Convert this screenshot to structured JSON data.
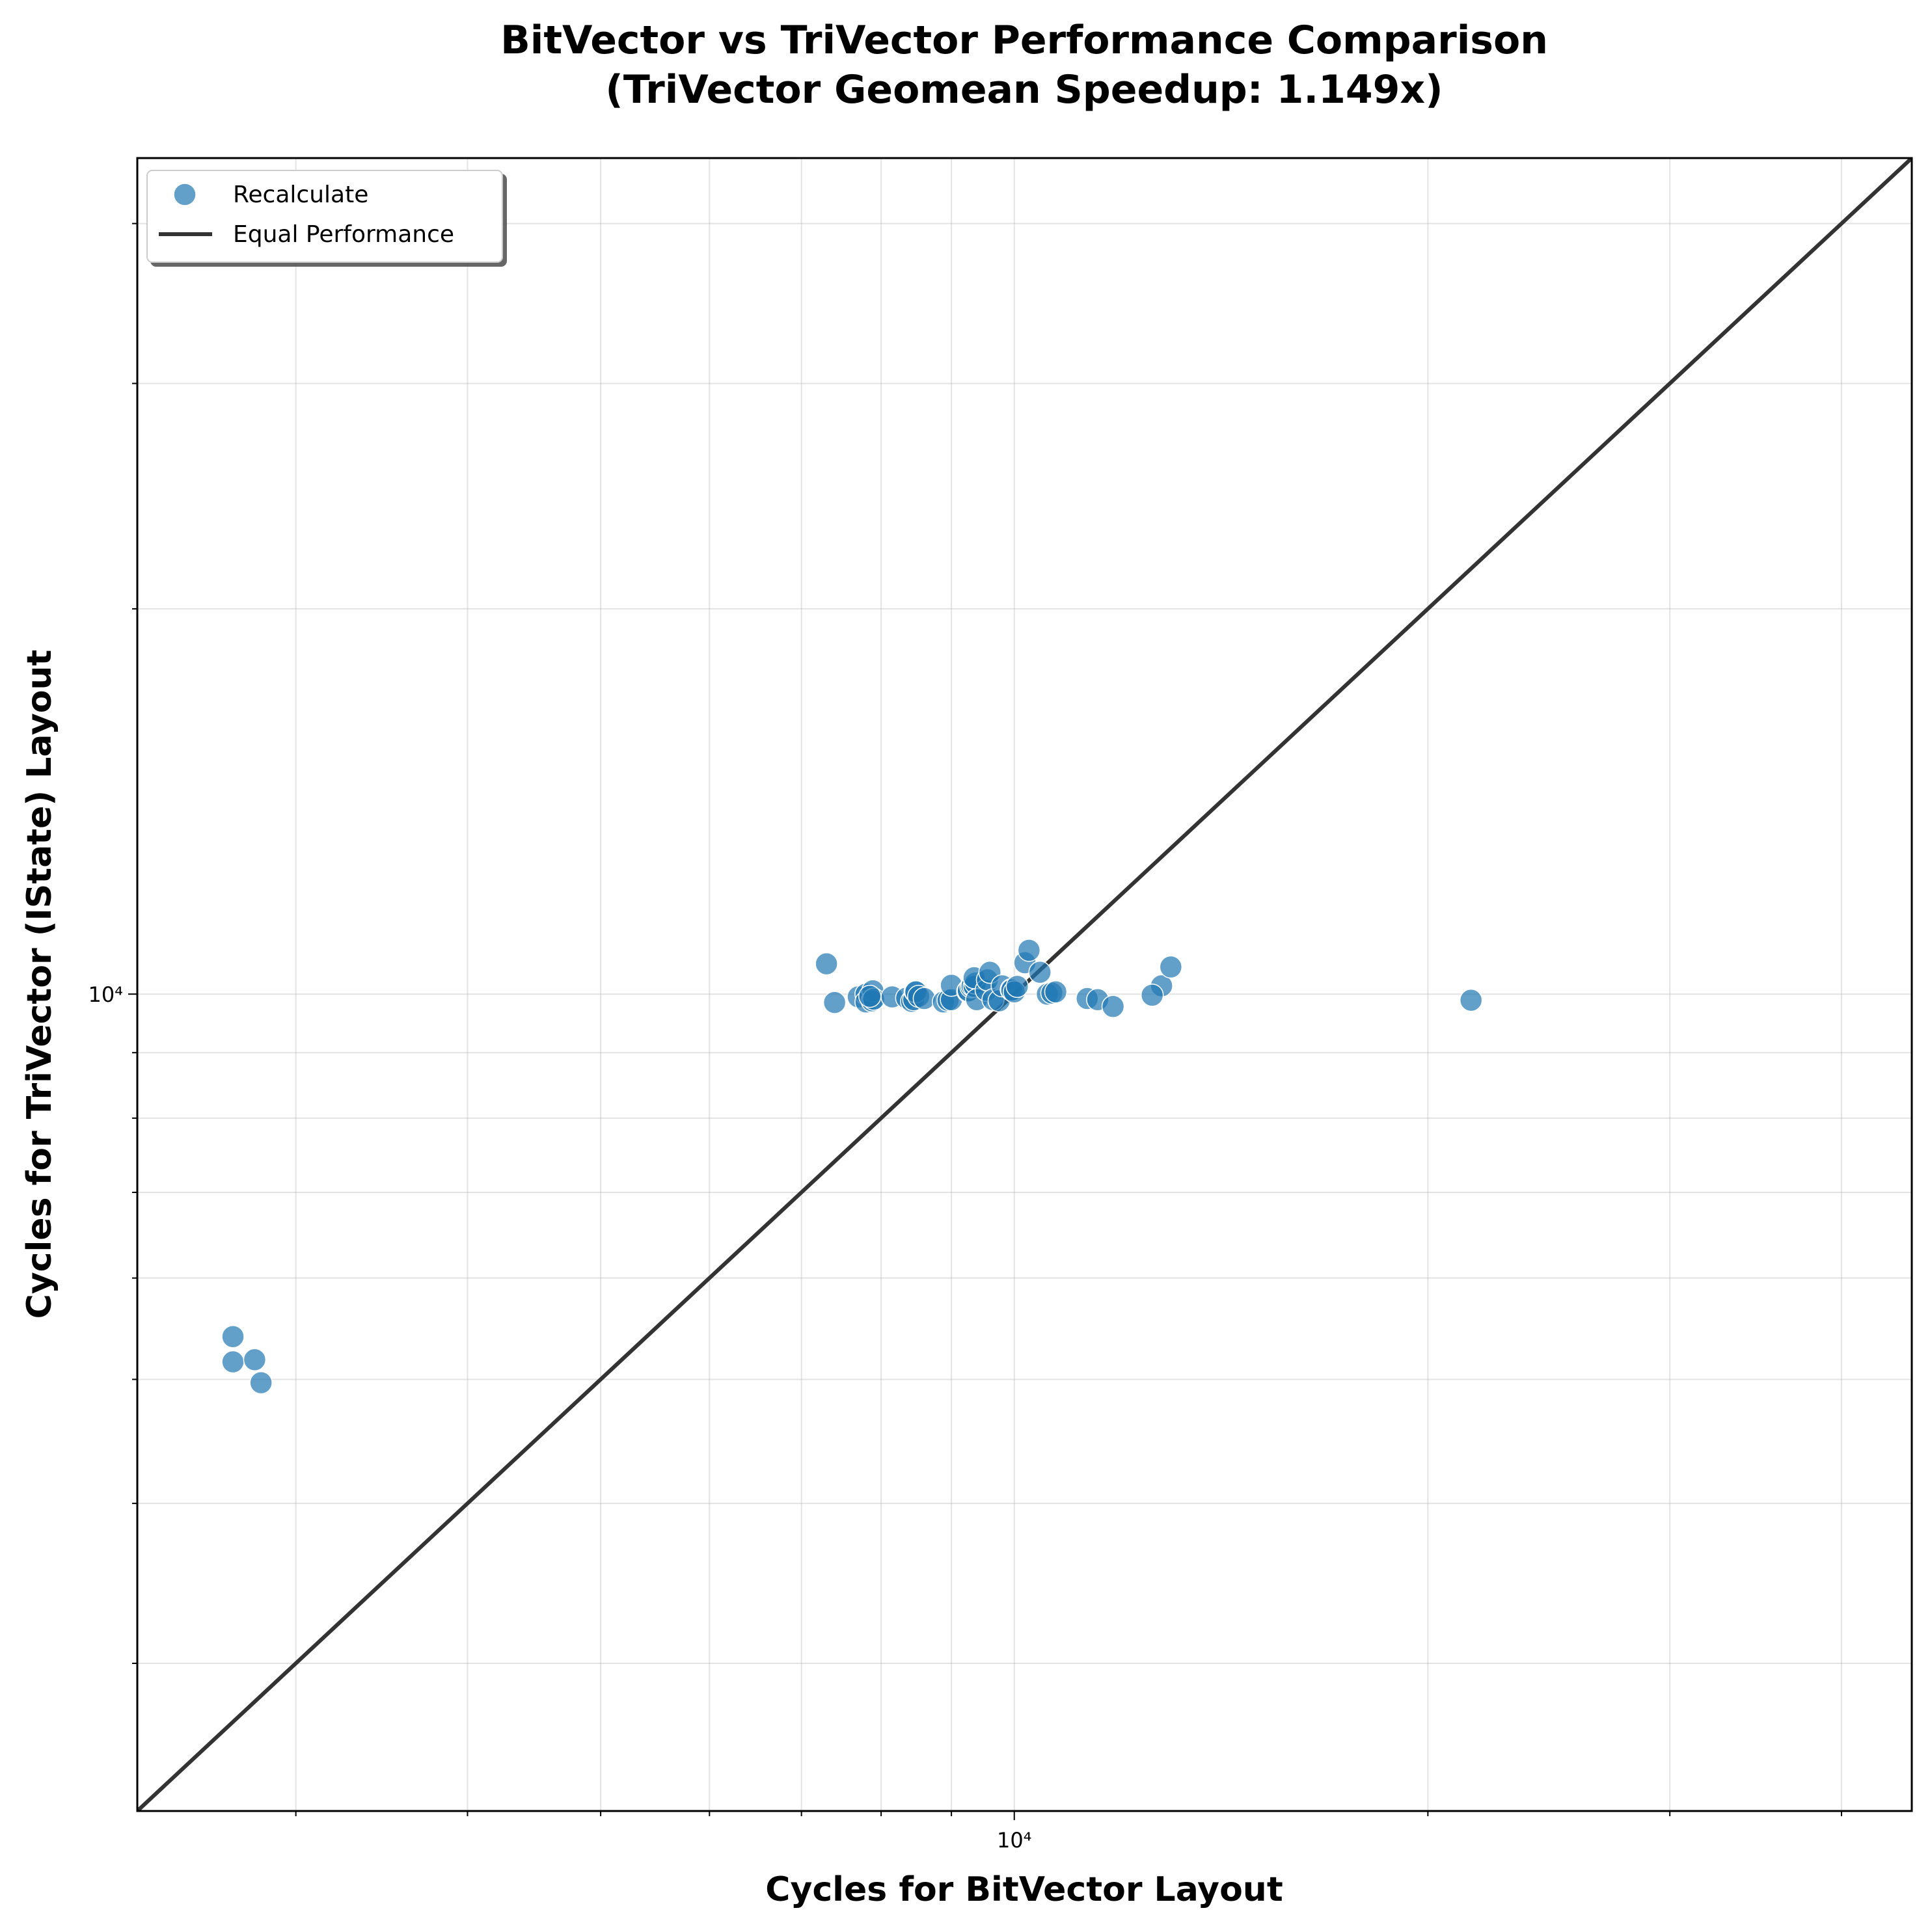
{
  "chart_data": {
    "type": "scatter",
    "title": "BitVector vs TriVector Performance Comparison",
    "subtitle": "(TriVector Geomean Speedup: 1.149x)",
    "xlabel": "Cycles for BitVector Layout",
    "ylabel": "Cycles for TriVector (IState) Layout",
    "x_scale": "log",
    "y_scale": "log",
    "xlim": [
      2300,
      45000
    ],
    "ylim": [
      2300,
      45000
    ],
    "major_tick_value": 10000,
    "major_tick_label": "10⁴",
    "minor_ticks": [
      3000,
      4000,
      5000,
      6000,
      7000,
      8000,
      9000,
      20000,
      30000,
      40000
    ],
    "grid": true,
    "legend_position": "top-left",
    "legend": [
      {
        "label": "Recalculate",
        "kind": "marker"
      },
      {
        "label": "Equal Performance",
        "kind": "line"
      }
    ],
    "series": [
      {
        "name": "Recalculate",
        "color": "#1f77b4",
        "points": [
          [
            2700,
            5400
          ],
          [
            2700,
            5160
          ],
          [
            2800,
            5180
          ],
          [
            2830,
            4970
          ],
          [
            7300,
            10560
          ],
          [
            7400,
            9850
          ],
          [
            7700,
            9950
          ],
          [
            7800,
            10000
          ],
          [
            7800,
            9860
          ],
          [
            7890,
            10060
          ],
          [
            7880,
            9880
          ],
          [
            7900,
            9910
          ],
          [
            7850,
            9960
          ],
          [
            8150,
            9950
          ],
          [
            8350,
            9930
          ],
          [
            8420,
            9870
          ],
          [
            8450,
            9900
          ],
          [
            8470,
            10050
          ],
          [
            8480,
            10040
          ],
          [
            8520,
            9960
          ],
          [
            8600,
            9920
          ],
          [
            8880,
            9860
          ],
          [
            8950,
            9890
          ],
          [
            9000,
            9900
          ],
          [
            9000,
            10160
          ],
          [
            9250,
            10050
          ],
          [
            9260,
            10060
          ],
          [
            9300,
            10130
          ],
          [
            9320,
            10150
          ],
          [
            9350,
            10140
          ],
          [
            9370,
            10200
          ],
          [
            9350,
            10300
          ],
          [
            9390,
            9900
          ],
          [
            9540,
            10070
          ],
          [
            9560,
            10260
          ],
          [
            9600,
            10400
          ],
          [
            9650,
            9900
          ],
          [
            9750,
            9880
          ],
          [
            9800,
            10150
          ],
          [
            9950,
            10080
          ],
          [
            9960,
            10075
          ],
          [
            10000,
            10040
          ],
          [
            10050,
            10140
          ],
          [
            10180,
            10580
          ],
          [
            10250,
            10820
          ],
          [
            10440,
            10400
          ],
          [
            10570,
            10000
          ],
          [
            10650,
            10020
          ],
          [
            10720,
            10040
          ],
          [
            11300,
            9920
          ],
          [
            11500,
            9900
          ],
          [
            11800,
            9780
          ],
          [
            12800,
            10150
          ],
          [
            12600,
            9980
          ],
          [
            13000,
            10500
          ],
          [
            21500,
            9890
          ]
        ]
      },
      {
        "name": "Equal Performance",
        "color": "#333333",
        "points": [
          [
            2300,
            2300
          ],
          [
            45000,
            45000
          ]
        ]
      }
    ]
  }
}
